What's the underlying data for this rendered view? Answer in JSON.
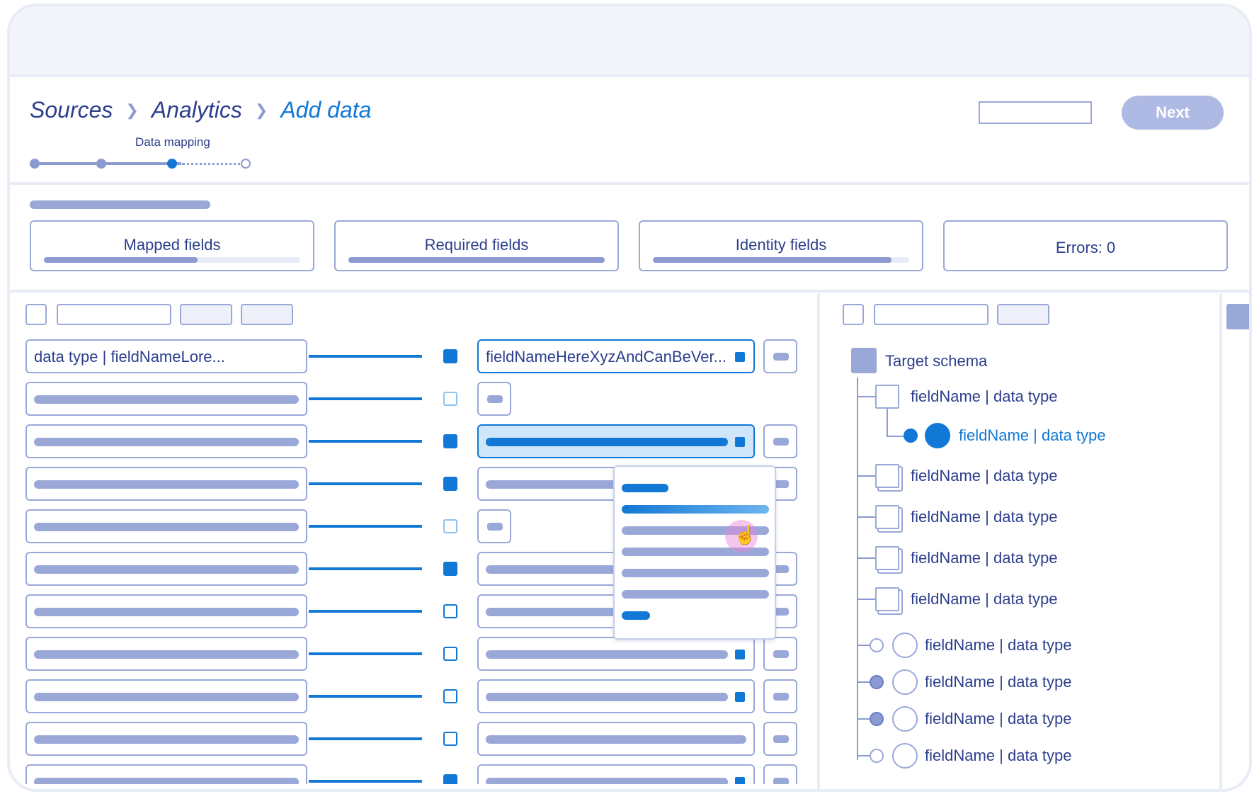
{
  "breadcrumb": {
    "items": [
      "Sources",
      "Analytics",
      "Add data"
    ]
  },
  "progress": {
    "current_step_label": "Data mapping",
    "steps_total": 4,
    "current_step": 3
  },
  "header": {
    "next_label": "Next"
  },
  "stats": [
    {
      "label": "Mapped fields",
      "progress": 0.6
    },
    {
      "label": "Required fields",
      "progress": 1.0
    },
    {
      "label": "Identity fields",
      "progress": 0.93
    },
    {
      "label": "Errors: 0"
    }
  ],
  "mapping": {
    "first_row": {
      "source": "data type | fieldNameLore...",
      "target": "fieldNameHereXyzAndCanBeVer..."
    }
  },
  "target_schema": {
    "title": "Target schema",
    "fields": [
      "fieldName | data type",
      "fieldName | data type",
      "fieldName | data type",
      "fieldName | data type",
      "fieldName | data type",
      "fieldName | data type",
      "fieldName | data type",
      "fieldName | data type",
      "fieldName | data type",
      "fieldName | data type"
    ]
  },
  "colors": {
    "accent": "#1178d6",
    "placeholder": "#9aa8d8",
    "text": "#2c3e8c",
    "button_disabled": "#aeb9e4"
  },
  "icons": [
    "chevron-right-icon",
    "hand-cursor-icon"
  ]
}
